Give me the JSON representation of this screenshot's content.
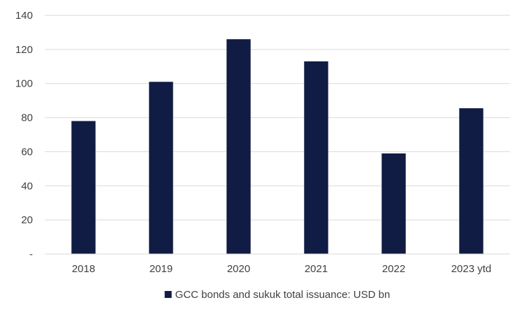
{
  "chart_data": {
    "type": "bar",
    "categories": [
      "2018",
      "2019",
      "2020",
      "2021",
      "2022",
      "2023 ytd"
    ],
    "series": [
      {
        "name": "GCC bonds and sukuk total issuance: USD bn",
        "color": "#111c44",
        "values": [
          78,
          101,
          126,
          113,
          59,
          85.5
        ]
      }
    ],
    "ylim": [
      0,
      140
    ],
    "y_ticks": [
      0,
      20,
      40,
      60,
      80,
      100,
      120,
      140
    ],
    "y_tick_labels": [
      "-",
      "20",
      "40",
      "60",
      "80",
      "100",
      "120",
      "140"
    ],
    "grid": true,
    "legend_position": "bottom"
  }
}
